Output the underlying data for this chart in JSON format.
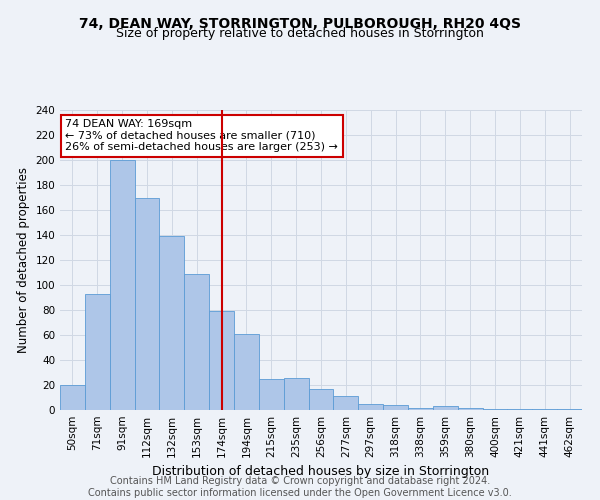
{
  "title": "74, DEAN WAY, STORRINGTON, PULBOROUGH, RH20 4QS",
  "subtitle": "Size of property relative to detached houses in Storrington",
  "xlabel": "Distribution of detached houses by size in Storrington",
  "ylabel": "Number of detached properties",
  "bin_labels": [
    "50sqm",
    "71sqm",
    "91sqm",
    "112sqm",
    "132sqm",
    "153sqm",
    "174sqm",
    "194sqm",
    "215sqm",
    "235sqm",
    "256sqm",
    "277sqm",
    "297sqm",
    "318sqm",
    "338sqm",
    "359sqm",
    "380sqm",
    "400sqm",
    "421sqm",
    "441sqm",
    "462sqm"
  ],
  "bar_values": [
    20,
    93,
    200,
    170,
    139,
    109,
    79,
    61,
    25,
    26,
    17,
    11,
    5,
    4,
    2,
    3,
    2,
    1,
    1,
    1,
    1
  ],
  "bar_color": "#aec6e8",
  "bar_edge_color": "#5b9bd5",
  "subject_bin_index": 6,
  "annotation_text": "74 DEAN WAY: 169sqm\n← 73% of detached houses are smaller (710)\n26% of semi-detached houses are larger (253) →",
  "annotation_box_color": "#ffffff",
  "annotation_box_edge_color": "#cc0000",
  "vline_color": "#cc0000",
  "ylim": [
    0,
    240
  ],
  "yticks": [
    0,
    20,
    40,
    60,
    80,
    100,
    120,
    140,
    160,
    180,
    200,
    220,
    240
  ],
  "grid_color": "#d0d8e4",
  "footnote": "Contains HM Land Registry data © Crown copyright and database right 2024.\nContains public sector information licensed under the Open Government Licence v3.0.",
  "title_fontsize": 10,
  "subtitle_fontsize": 9,
  "xlabel_fontsize": 9,
  "ylabel_fontsize": 8.5,
  "tick_fontsize": 7.5,
  "annotation_fontsize": 8,
  "footnote_fontsize": 7,
  "background_color": "#eef2f8"
}
